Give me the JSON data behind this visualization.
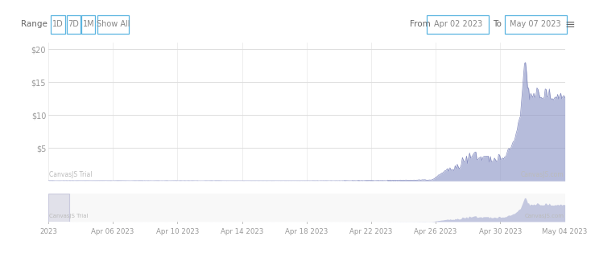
{
  "title_bar": {
    "range_label": "Range",
    "buttons": [
      "1D",
      "7D",
      "1M",
      "Show All"
    ],
    "from_label": "From",
    "from_date": "Apr 02 2023",
    "to_label": "To",
    "to_date": "May 07 2023"
  },
  "y_ticks": [
    5,
    10,
    15,
    20
  ],
  "x_tick_labels": [
    "2023",
    "Apr 06 2023",
    "Apr 10 2023",
    "Apr 14 2023",
    "Apr 18 2023",
    "Apr 22 2023",
    "Apr 26 2023",
    "Apr 30 2023",
    "May 04 2023"
  ],
  "watermark_left": "CanvasJS Trial",
  "watermark_right": "CanvasJS.com",
  "fill_color": "#9098c8",
  "fill_alpha": 0.65,
  "line_color": "#7880b8",
  "background_color": "#ffffff",
  "grid_color": "#dddddd",
  "button_border_color": "#5ab4e0",
  "button_text_color": "#888888",
  "axis_text_color": "#999999",
  "ylim": [
    0,
    21
  ],
  "nav_fill_color": "#9098c8",
  "nav_fill_alpha": 0.5
}
